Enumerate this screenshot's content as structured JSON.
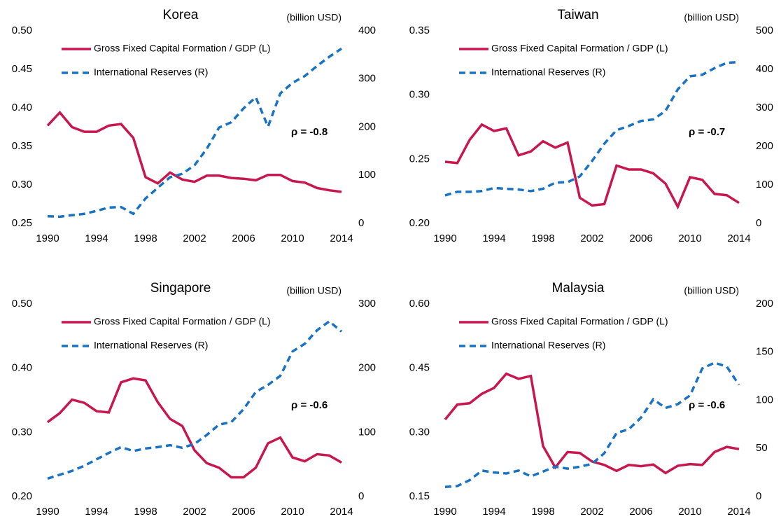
{
  "chart_data": [
    {
      "type": "line",
      "title": "Korea",
      "y2_label": "(billion USD)",
      "annotation": "ρ = -0.8",
      "x": [
        1990,
        1991,
        1992,
        1993,
        1994,
        1995,
        1996,
        1997,
        1998,
        1999,
        2000,
        2001,
        2002,
        2003,
        2004,
        2005,
        2006,
        2007,
        2008,
        2009,
        2010,
        2011,
        2012,
        2013,
        2014
      ],
      "xlim": [
        1990,
        2014
      ],
      "xticks": [
        1990,
        1994,
        1998,
        2002,
        2006,
        2010,
        2014
      ],
      "ylim": [
        0.25,
        0.5
      ],
      "yticks": [
        0.25,
        {
          "value": 0.3,
          "label": "0.30"
        },
        0.35,
        {
          "value": 0.4,
          "label": "0.40"
        },
        0.45,
        {
          "value": 0.5,
          "label": "0.50"
        }
      ],
      "y2lim": [
        0,
        400
      ],
      "y2ticks": [
        0,
        100,
        200,
        300,
        400
      ],
      "series": [
        {
          "name": "Gross Fixed Capital Formation / GDP (L)",
          "color": "#c8174f",
          "line_style": "solid",
          "values": [
            0.377,
            0.394,
            0.375,
            0.369,
            0.369,
            0.377,
            0.379,
            0.361,
            0.31,
            0.302,
            0.316,
            0.307,
            0.304,
            0.312,
            0.312,
            0.309,
            0.308,
            0.306,
            0.313,
            0.313,
            0.305,
            0.303,
            0.296,
            0.293,
            0.291
          ]
        },
        {
          "name": "International Reserves (R)",
          "color": "#1a73c2",
          "line_style": "dashed",
          "axis": "y2",
          "values": [
            15,
            14,
            17,
            20,
            26,
            33,
            34,
            20,
            52,
            74,
            96,
            103,
            121,
            155,
            199,
            210,
            239,
            262,
            201,
            270,
            292,
            306,
            327,
            346,
            363
          ]
        }
      ]
    },
    {
      "type": "line",
      "title": "Taiwan",
      "y2_label": "(billion USD)",
      "annotation": "ρ = -0.7",
      "x": [
        1990,
        1991,
        1992,
        1993,
        1994,
        1995,
        1996,
        1997,
        1998,
        1999,
        2000,
        2001,
        2002,
        2003,
        2004,
        2005,
        2006,
        2007,
        2008,
        2009,
        2010,
        2011,
        2012,
        2013,
        2014
      ],
      "xlim": [
        1990,
        2014
      ],
      "xticks": [
        1990,
        1994,
        1998,
        2002,
        2006,
        2010,
        2014
      ],
      "ylim": [
        0.2,
        0.35
      ],
      "yticks": [
        {
          "value": 0.2,
          "label": "0.20"
        },
        0.25,
        {
          "value": 0.3,
          "label": "0.30"
        },
        0.35
      ],
      "y2lim": [
        0,
        500
      ],
      "y2ticks": [
        0,
        100,
        200,
        300,
        400,
        500
      ],
      "series": [
        {
          "name": "Gross Fixed Capital Formation / GDP (L)",
          "color": "#c8174f",
          "line_style": "solid",
          "values": [
            0.248,
            0.247,
            0.265,
            0.277,
            0.272,
            0.274,
            0.253,
            0.256,
            0.264,
            0.259,
            0.263,
            0.22,
            0.214,
            0.215,
            0.245,
            0.242,
            0.242,
            0.239,
            0.231,
            0.213,
            0.236,
            0.234,
            0.223,
            0.222,
            0.216
          ]
        },
        {
          "name": "International Reserves (R)",
          "color": "#1a73c2",
          "line_style": "dashed",
          "axis": "y2",
          "values": [
            73,
            82,
            82,
            84,
            92,
            90,
            88,
            84,
            90,
            106,
            107,
            122,
            162,
            207,
            242,
            253,
            266,
            270,
            292,
            348,
            382,
            386,
            403,
            417,
            419
          ]
        }
      ]
    },
    {
      "type": "line",
      "title": "Singapore",
      "y2_label": "(billion USD)",
      "annotation": "ρ = -0.6",
      "x": [
        1990,
        1991,
        1992,
        1993,
        1994,
        1995,
        1996,
        1997,
        1998,
        1999,
        2000,
        2001,
        2002,
        2003,
        2004,
        2005,
        2006,
        2007,
        2008,
        2009,
        2010,
        2011,
        2012,
        2013,
        2014
      ],
      "xlim": [
        1990,
        2014
      ],
      "xticks": [
        1990,
        1994,
        1998,
        2002,
        2006,
        2010,
        2014
      ],
      "ylim": [
        0.2,
        0.5
      ],
      "yticks": [
        {
          "value": 0.2,
          "label": "0.20"
        },
        {
          "value": 0.3,
          "label": "0.30"
        },
        {
          "value": 0.4,
          "label": "0.40"
        },
        {
          "value": 0.5,
          "label": "0.50"
        }
      ],
      "y2lim": [
        0,
        300
      ],
      "y2ticks": [
        0,
        100,
        200,
        300
      ],
      "series": [
        {
          "name": "Gross Fixed Capital Formation / GDP (L)",
          "color": "#c8174f",
          "line_style": "solid",
          "values": [
            0.316,
            0.33,
            0.351,
            0.346,
            0.333,
            0.331,
            0.378,
            0.384,
            0.381,
            0.347,
            0.321,
            0.31,
            0.272,
            0.252,
            0.245,
            0.23,
            0.23,
            0.245,
            0.283,
            0.292,
            0.261,
            0.255,
            0.266,
            0.264,
            0.253
          ]
        },
        {
          "name": "International Reserves (R)",
          "color": "#1a73c2",
          "line_style": "dashed",
          "axis": "y2",
          "values": [
            28,
            34,
            40,
            48,
            58,
            68,
            77,
            71,
            75,
            77,
            80,
            76,
            82,
            96,
            112,
            116,
            136,
            163,
            174,
            188,
            226,
            238,
            259,
            273,
            257
          ]
        }
      ]
    },
    {
      "type": "line",
      "title": "Malaysia",
      "y2_label": "(billion USD)",
      "annotation": "ρ = -0.6",
      "x": [
        1990,
        1991,
        1992,
        1993,
        1994,
        1995,
        1996,
        1997,
        1998,
        1999,
        2000,
        2001,
        2002,
        2003,
        2004,
        2005,
        2006,
        2007,
        2008,
        2009,
        2010,
        2011,
        2012,
        2013,
        2014
      ],
      "xlim": [
        1990,
        2014
      ],
      "xticks": [
        1990,
        1994,
        1998,
        2002,
        2006,
        2010,
        2014
      ],
      "ylim": [
        0.15,
        0.6
      ],
      "yticks": [
        0.15,
        {
          "value": 0.3,
          "label": "0.30"
        },
        0.45,
        {
          "value": 0.6,
          "label": "0.60"
        }
      ],
      "y2lim": [
        0,
        200
      ],
      "y2ticks": [
        0,
        50,
        100,
        150,
        200
      ],
      "series": [
        {
          "name": "Gross Fixed Capital Formation / GDP (L)",
          "color": "#c8174f",
          "line_style": "solid",
          "values": [
            0.33,
            0.365,
            0.368,
            0.39,
            0.404,
            0.437,
            0.425,
            0.432,
            0.268,
            0.218,
            0.254,
            0.252,
            0.232,
            0.224,
            0.21,
            0.224,
            0.221,
            0.225,
            0.205,
            0.222,
            0.226,
            0.224,
            0.254,
            0.266,
            0.261
          ]
        },
        {
          "name": "International Reserves (R)",
          "color": "#1a73c2",
          "line_style": "dashed",
          "axis": "y2",
          "values": [
            10,
            11,
            17,
            27,
            25,
            24,
            27,
            21,
            26,
            31,
            29,
            31,
            34,
            45,
            66,
            70,
            82,
            101,
            92,
            96,
            105,
            133,
            139,
            135,
            116
          ]
        }
      ]
    }
  ]
}
